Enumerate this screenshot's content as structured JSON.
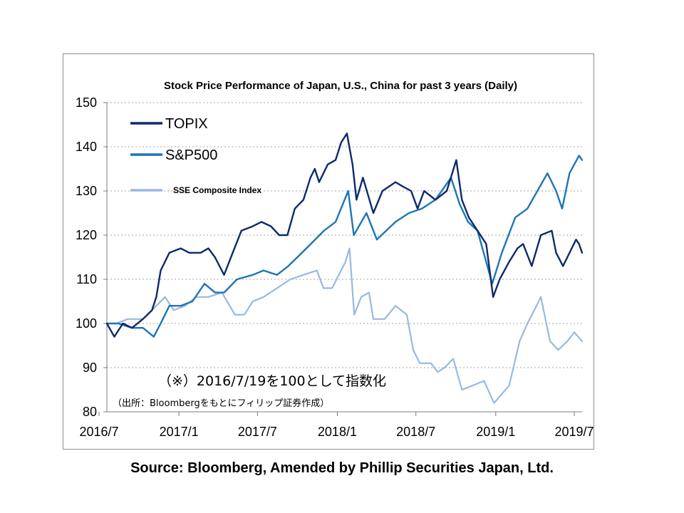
{
  "chart_data": {
    "type": "line",
    "title": "Stock Price Performance of Japan, U.S., China for past 3 years (Daily)",
    "xlabel": "",
    "ylabel": "",
    "ylim": [
      80,
      150
    ],
    "yticks": [
      80,
      90,
      100,
      110,
      120,
      130,
      140,
      150
    ],
    "xlim": [
      "2016-07-19",
      "2019-07-19"
    ],
    "xticks": [
      "2016-07",
      "2017-01",
      "2017-07",
      "2018-01",
      "2018-07",
      "2019-01",
      "2019-07"
    ],
    "xtick_labels": [
      "2016/7",
      "2017/1",
      "2017/7",
      "2018/1",
      "2018/7",
      "2019/1",
      "2019/7"
    ],
    "grid": "horizontal dotted",
    "legend_position": "top-left",
    "series": [
      {
        "name": "TOPIX",
        "color": "#0d2a6b",
        "points": [
          [
            "2016-07-19",
            100
          ],
          [
            "2016-08-05",
            97
          ],
          [
            "2016-08-25",
            100
          ],
          [
            "2016-09-15",
            99
          ],
          [
            "2016-10-10",
            101
          ],
          [
            "2016-10-31",
            103
          ],
          [
            "2016-11-10",
            106
          ],
          [
            "2016-11-20",
            112
          ],
          [
            "2016-12-10",
            116
          ],
          [
            "2017-01-05",
            117
          ],
          [
            "2017-01-25",
            116
          ],
          [
            "2017-02-20",
            116
          ],
          [
            "2017-03-10",
            117
          ],
          [
            "2017-03-25",
            115
          ],
          [
            "2017-04-15",
            111
          ],
          [
            "2017-05-05",
            116
          ],
          [
            "2017-05-25",
            121
          ],
          [
            "2017-06-20",
            122
          ],
          [
            "2017-07-10",
            123
          ],
          [
            "2017-08-01",
            122
          ],
          [
            "2017-08-20",
            120
          ],
          [
            "2017-09-08",
            120
          ],
          [
            "2017-09-25",
            126
          ],
          [
            "2017-10-15",
            128
          ],
          [
            "2017-10-31",
            133
          ],
          [
            "2017-11-10",
            135
          ],
          [
            "2017-11-20",
            132
          ],
          [
            "2017-12-10",
            136
          ],
          [
            "2017-12-28",
            137
          ],
          [
            "2018-01-10",
            141
          ],
          [
            "2018-01-23",
            143
          ],
          [
            "2018-02-05",
            136
          ],
          [
            "2018-02-14",
            128
          ],
          [
            "2018-03-01",
            133
          ],
          [
            "2018-03-25",
            125
          ],
          [
            "2018-04-15",
            130
          ],
          [
            "2018-05-15",
            132
          ],
          [
            "2018-06-01",
            131
          ],
          [
            "2018-06-20",
            130
          ],
          [
            "2018-07-05",
            126
          ],
          [
            "2018-07-20",
            130
          ],
          [
            "2018-08-15",
            128
          ],
          [
            "2018-09-10",
            130
          ],
          [
            "2018-10-02",
            137
          ],
          [
            "2018-10-15",
            128
          ],
          [
            "2018-10-31",
            124
          ],
          [
            "2018-11-20",
            121
          ],
          [
            "2018-12-10",
            118
          ],
          [
            "2018-12-26",
            106
          ],
          [
            "2019-01-10",
            110
          ],
          [
            "2019-02-01",
            114
          ],
          [
            "2019-02-20",
            117
          ],
          [
            "2019-03-05",
            118
          ],
          [
            "2019-03-25",
            113
          ],
          [
            "2019-04-15",
            120
          ],
          [
            "2019-05-10",
            121
          ],
          [
            "2019-05-20",
            116
          ],
          [
            "2019-06-05",
            113
          ],
          [
            "2019-06-25",
            117
          ],
          [
            "2019-07-05",
            119
          ],
          [
            "2019-07-12",
            118
          ],
          [
            "2019-07-19",
            116
          ]
        ]
      },
      {
        "name": "S&P500",
        "color": "#1f75b5",
        "points": [
          [
            "2016-07-19",
            100
          ],
          [
            "2016-08-15",
            100
          ],
          [
            "2016-09-15",
            99
          ],
          [
            "2016-10-10",
            99
          ],
          [
            "2016-11-04",
            97
          ],
          [
            "2016-11-20",
            100
          ],
          [
            "2016-12-10",
            104
          ],
          [
            "2017-01-05",
            104
          ],
          [
            "2017-02-01",
            105
          ],
          [
            "2017-03-01",
            109
          ],
          [
            "2017-03-25",
            107
          ],
          [
            "2017-04-15",
            107
          ],
          [
            "2017-05-15",
            110
          ],
          [
            "2017-06-20",
            111
          ],
          [
            "2017-07-15",
            112
          ],
          [
            "2017-08-15",
            111
          ],
          [
            "2017-09-10",
            113
          ],
          [
            "2017-10-01",
            115
          ],
          [
            "2017-11-01",
            118
          ],
          [
            "2017-12-01",
            121
          ],
          [
            "2017-12-28",
            123
          ],
          [
            "2018-01-26",
            130
          ],
          [
            "2018-02-08",
            120
          ],
          [
            "2018-03-09",
            125
          ],
          [
            "2018-04-02",
            119
          ],
          [
            "2018-05-15",
            123
          ],
          [
            "2018-06-15",
            125
          ],
          [
            "2018-07-15",
            126
          ],
          [
            "2018-08-15",
            128
          ],
          [
            "2018-09-20",
            133
          ],
          [
            "2018-10-10",
            127
          ],
          [
            "2018-10-29",
            123
          ],
          [
            "2018-11-20",
            121
          ],
          [
            "2018-12-24",
            109
          ],
          [
            "2019-01-15",
            116
          ],
          [
            "2019-02-15",
            124
          ],
          [
            "2019-03-15",
            126
          ],
          [
            "2019-04-30",
            134
          ],
          [
            "2019-05-20",
            130
          ],
          [
            "2019-06-03",
            126
          ],
          [
            "2019-06-20",
            134
          ],
          [
            "2019-07-12",
            138
          ],
          [
            "2019-07-19",
            137
          ]
        ]
      },
      {
        "name": "SSE Composite Index",
        "color": "#9ab8e0",
        "points": [
          [
            "2016-07-19",
            100
          ],
          [
            "2016-08-10",
            100
          ],
          [
            "2016-09-05",
            101
          ],
          [
            "2016-10-10",
            101
          ],
          [
            "2016-11-10",
            104
          ],
          [
            "2016-11-30",
            106
          ],
          [
            "2016-12-20",
            103
          ],
          [
            "2017-01-15",
            104
          ],
          [
            "2017-02-10",
            106
          ],
          [
            "2017-03-10",
            106
          ],
          [
            "2017-04-10",
            107
          ],
          [
            "2017-05-10",
            102
          ],
          [
            "2017-06-01",
            102
          ],
          [
            "2017-06-20",
            105
          ],
          [
            "2017-07-15",
            106
          ],
          [
            "2017-08-15",
            108
          ],
          [
            "2017-09-15",
            110
          ],
          [
            "2017-10-15",
            111
          ],
          [
            "2017-11-15",
            112
          ],
          [
            "2017-11-30",
            108
          ],
          [
            "2017-12-20",
            108
          ],
          [
            "2018-01-20",
            114
          ],
          [
            "2018-01-29",
            117
          ],
          [
            "2018-02-09",
            102
          ],
          [
            "2018-02-25",
            106
          ],
          [
            "2018-03-15",
            107
          ],
          [
            "2018-03-25",
            101
          ],
          [
            "2018-04-20",
            101
          ],
          [
            "2018-05-15",
            104
          ],
          [
            "2018-06-10",
            102
          ],
          [
            "2018-06-25",
            94
          ],
          [
            "2018-07-10",
            91
          ],
          [
            "2018-08-05",
            91
          ],
          [
            "2018-08-20",
            89
          ],
          [
            "2018-09-05",
            90
          ],
          [
            "2018-09-25",
            92
          ],
          [
            "2018-10-15",
            85
          ],
          [
            "2018-11-10",
            86
          ],
          [
            "2018-12-05",
            87
          ],
          [
            "2018-12-28",
            82
          ],
          [
            "2019-01-15",
            84
          ],
          [
            "2019-02-01",
            86
          ],
          [
            "2019-02-25",
            96
          ],
          [
            "2019-03-15",
            100
          ],
          [
            "2019-04-05",
            104
          ],
          [
            "2019-04-15",
            106
          ],
          [
            "2019-05-06",
            96
          ],
          [
            "2019-05-25",
            94
          ],
          [
            "2019-06-15",
            96
          ],
          [
            "2019-07-01",
            98
          ],
          [
            "2019-07-10",
            97
          ],
          [
            "2019-07-19",
            96
          ]
        ]
      }
    ]
  },
  "note_main": "（※）2016/7/19を100として指数化",
  "note_source": "（出所：Bloombergをもとにフィリップ証券作成）",
  "footer_source": "Source: Bloomberg, Amended by Phillip Securities Japan, Ltd."
}
